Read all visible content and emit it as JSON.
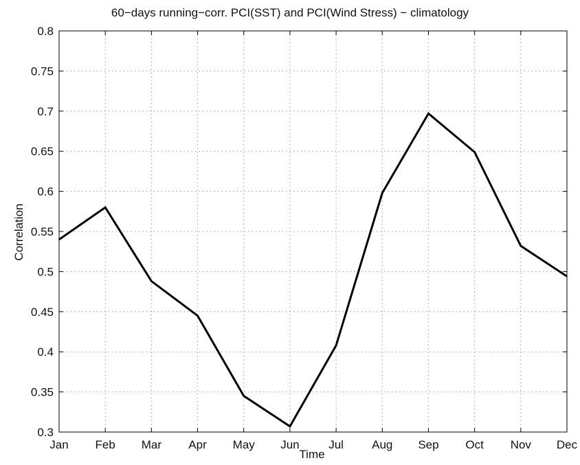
{
  "chart_data": {
    "type": "line",
    "title": "60−days running−corr. PCI(SST) and PCI(Wind Stress) − climatology",
    "xlabel": "Time",
    "ylabel": "Correlation",
    "categories": [
      "Jan",
      "Feb",
      "Mar",
      "Apr",
      "May",
      "Jun",
      "Jul",
      "Aug",
      "Sep",
      "Oct",
      "Nov",
      "Dec"
    ],
    "series": [
      {
        "values": [
          0.54,
          0.58,
          0.488,
          0.445,
          0.345,
          0.307,
          0.408,
          0.598,
          0.697,
          0.649,
          0.532,
          0.494
        ]
      }
    ],
    "ylim": [
      0.3,
      0.8
    ],
    "yticks": [
      0.3,
      0.35,
      0.4,
      0.45,
      0.5,
      0.55,
      0.6,
      0.65,
      0.7,
      0.75,
      0.8
    ],
    "ytick_labels": [
      "0.3",
      "0.35",
      "0.4",
      "0.45",
      "0.5",
      "0.55",
      "0.6",
      "0.65",
      "0.7",
      "0.75",
      "0.8"
    ],
    "grid": true,
    "line_color": "#000000"
  }
}
